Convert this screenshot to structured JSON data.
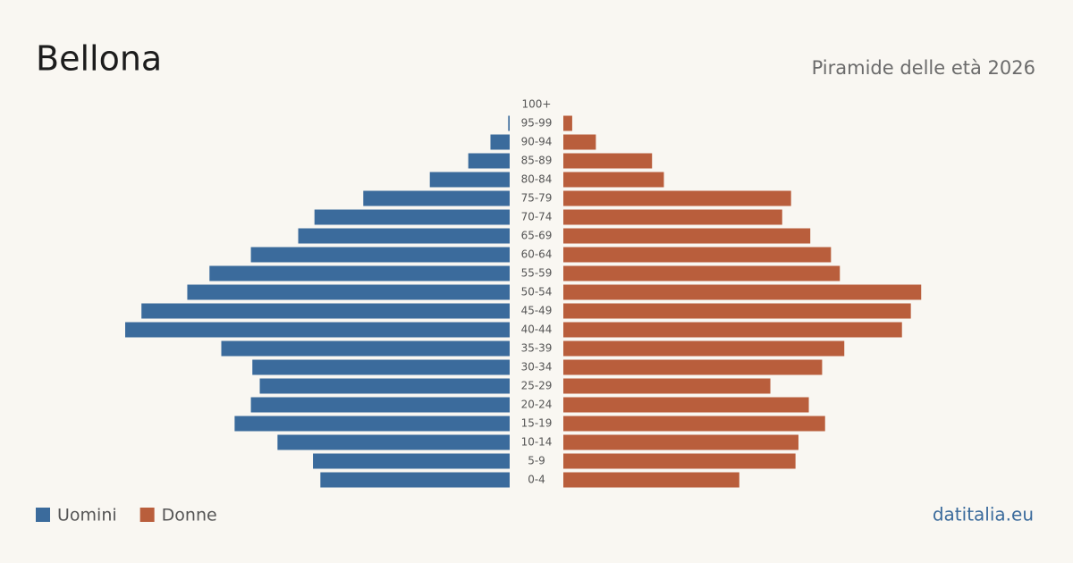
{
  "chart_data": {
    "type": "pyramid",
    "title": "Bellona",
    "subtitle": "Piramide delle età 2026",
    "source": "datitalia.eu",
    "categories": [
      "100+",
      "95-99",
      "90-94",
      "85-89",
      "80-84",
      "75-79",
      "70-74",
      "65-69",
      "60-64",
      "55-59",
      "50-54",
      "45-49",
      "40-44",
      "35-39",
      "30-34",
      "25-29",
      "20-24",
      "15-19",
      "10-14",
      "5-9",
      "0-4"
    ],
    "xlim": [
      0,
      260
    ],
    "series": [
      {
        "name": "Uomini",
        "color": "#3b6b9c",
        "values": [
          0,
          1,
          13,
          28,
          54,
          99,
          132,
          143,
          175,
          203,
          218,
          249,
          260,
          195,
          174,
          169,
          175,
          186,
          157,
          133,
          128
        ]
      },
      {
        "name": "Donne",
        "color": "#b95e3c",
        "values": [
          0,
          6,
          22,
          60,
          68,
          154,
          148,
          167,
          181,
          187,
          242,
          235,
          229,
          190,
          175,
          140,
          166,
          177,
          159,
          157,
          119
        ]
      }
    ]
  }
}
